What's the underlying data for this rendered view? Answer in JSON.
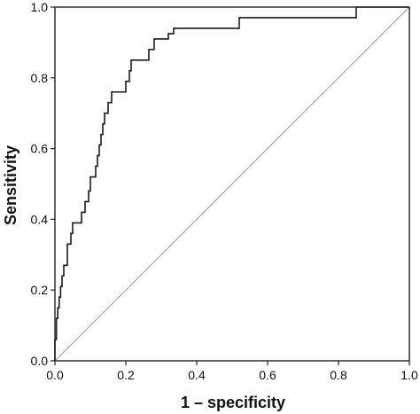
{
  "chart_data": {
    "type": "line",
    "title": "",
    "xlabel": "1 – specificity",
    "ylabel": "Sensitivity",
    "xlim": [
      0,
      1
    ],
    "ylim": [
      0,
      1
    ],
    "xticks": [
      "0.0",
      "0.2",
      "0.4",
      "0.6",
      "0.8",
      "1.0"
    ],
    "yticks": [
      "0.0",
      "0.2",
      "0.4",
      "0.6",
      "0.8",
      "1.0"
    ],
    "grid": false,
    "legend": "none",
    "colors": {
      "roc": "#1a1a1a",
      "reference": "#9a9a9a",
      "frame": "#222222"
    },
    "series": [
      {
        "style": "step",
        "points": [
          [
            0.0,
            0.0
          ],
          [
            0.0,
            0.06
          ],
          [
            0.004,
            0.06
          ],
          [
            0.004,
            0.12
          ],
          [
            0.008,
            0.12
          ],
          [
            0.008,
            0.15
          ],
          [
            0.012,
            0.15
          ],
          [
            0.012,
            0.18
          ],
          [
            0.016,
            0.18
          ],
          [
            0.016,
            0.21
          ],
          [
            0.02,
            0.21
          ],
          [
            0.02,
            0.24
          ],
          [
            0.025,
            0.24
          ],
          [
            0.025,
            0.27
          ],
          [
            0.035,
            0.27
          ],
          [
            0.035,
            0.3
          ],
          [
            0.035,
            0.33
          ],
          [
            0.045,
            0.33
          ],
          [
            0.045,
            0.36
          ],
          [
            0.05,
            0.36
          ],
          [
            0.05,
            0.39
          ],
          [
            0.075,
            0.39
          ],
          [
            0.075,
            0.42
          ],
          [
            0.085,
            0.42
          ],
          [
            0.085,
            0.45
          ],
          [
            0.095,
            0.45
          ],
          [
            0.095,
            0.48
          ],
          [
            0.1,
            0.48
          ],
          [
            0.1,
            0.52
          ],
          [
            0.115,
            0.52
          ],
          [
            0.115,
            0.55
          ],
          [
            0.12,
            0.55
          ],
          [
            0.12,
            0.58
          ],
          [
            0.125,
            0.58
          ],
          [
            0.125,
            0.61
          ],
          [
            0.13,
            0.61
          ],
          [
            0.13,
            0.64
          ],
          [
            0.135,
            0.64
          ],
          [
            0.135,
            0.67
          ],
          [
            0.14,
            0.67
          ],
          [
            0.14,
            0.7
          ],
          [
            0.15,
            0.7
          ],
          [
            0.15,
            0.73
          ],
          [
            0.16,
            0.73
          ],
          [
            0.16,
            0.76
          ],
          [
            0.2,
            0.76
          ],
          [
            0.2,
            0.79
          ],
          [
            0.21,
            0.79
          ],
          [
            0.21,
            0.82
          ],
          [
            0.215,
            0.82
          ],
          [
            0.215,
            0.85
          ],
          [
            0.265,
            0.85
          ],
          [
            0.265,
            0.88
          ],
          [
            0.28,
            0.88
          ],
          [
            0.28,
            0.91
          ],
          [
            0.32,
            0.91
          ],
          [
            0.32,
            0.925
          ],
          [
            0.335,
            0.925
          ],
          [
            0.335,
            0.94
          ],
          [
            0.52,
            0.94
          ],
          [
            0.52,
            0.97
          ],
          [
            0.85,
            0.97
          ],
          [
            0.85,
            1.0
          ],
          [
            1.0,
            1.0
          ]
        ]
      },
      {
        "style": "reference",
        "points": [
          [
            0,
            0
          ],
          [
            1,
            1
          ]
        ]
      }
    ]
  }
}
